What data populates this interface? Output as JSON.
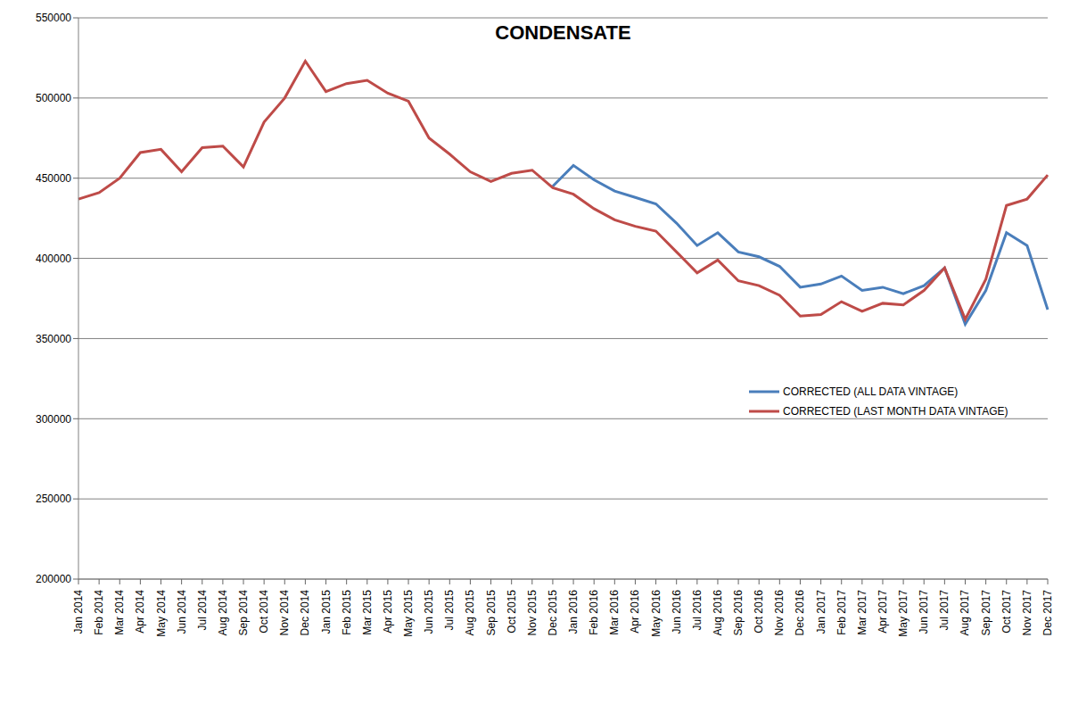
{
  "chart_data": {
    "type": "line",
    "title": "CONDENSATE",
    "categories": [
      "Jan 2014",
      "Feb 2014",
      "Mar 2014",
      "Apr 2014",
      "May 2014",
      "Jun 2014",
      "Jul 2014",
      "Aug 2014",
      "Sep 2014",
      "Oct 2014",
      "Nov 2014",
      "Dec 2014",
      "Jan 2015",
      "Feb 2015",
      "Mar 2015",
      "Apr 2015",
      "May 2015",
      "Jun 2015",
      "Jul 2015",
      "Aug 2015",
      "Sep 2015",
      "Oct 2015",
      "Nov 2015",
      "Dec 2015",
      "Jan 2016",
      "Feb 2016",
      "Mar 2016",
      "Apr 2016",
      "May 2016",
      "Jun 2016",
      "Jul 2016",
      "Aug 2016",
      "Sep 2016",
      "Oct 2016",
      "Nov 2016",
      "Dec 2016",
      "Jan 2017",
      "Feb 2017",
      "Mar 2017",
      "Apr 2017",
      "May 2017",
      "Jun 2017",
      "Jul 2017",
      "Aug 2017",
      "Sep 2017",
      "Oct 2017",
      "Nov 2017",
      "Dec 2017"
    ],
    "series": [
      {
        "name": "CORRECTED (ALL DATA VINTAGE)",
        "color": "#4a7ebb",
        "line_style": "solid",
        "values": [
          null,
          null,
          null,
          null,
          null,
          null,
          null,
          null,
          null,
          null,
          null,
          null,
          null,
          null,
          null,
          null,
          null,
          null,
          null,
          null,
          null,
          null,
          null,
          445000,
          458000,
          449000,
          442000,
          438000,
          434000,
          422000,
          408000,
          416000,
          404000,
          401000,
          395000,
          382000,
          384000,
          389000,
          380000,
          382000,
          378000,
          383000,
          394000,
          359000,
          380000,
          416000,
          408000,
          368000
        ]
      },
      {
        "name": "CORRECTED (LAST MONTH DATA VINTAGE)",
        "color": "#be4b48",
        "line_style": "solid",
        "values": [
          437000,
          441000,
          450000,
          466000,
          468000,
          454000,
          469000,
          470000,
          457000,
          485000,
          500000,
          523000,
          504000,
          509000,
          511000,
          503000,
          498000,
          475000,
          465000,
          454000,
          448000,
          453000,
          455000,
          444000,
          440000,
          431000,
          424000,
          420000,
          417000,
          404000,
          391000,
          399000,
          386000,
          383000,
          377000,
          364000,
          365000,
          373000,
          367000,
          372000,
          371000,
          380000,
          394000,
          362000,
          387000,
          433000,
          437000,
          452000
        ]
      }
    ],
    "ylim": [
      200000,
      550000
    ],
    "yticks": [
      200000,
      250000,
      300000,
      350000,
      400000,
      450000,
      500000,
      550000
    ],
    "grid": true,
    "legend": "right"
  }
}
